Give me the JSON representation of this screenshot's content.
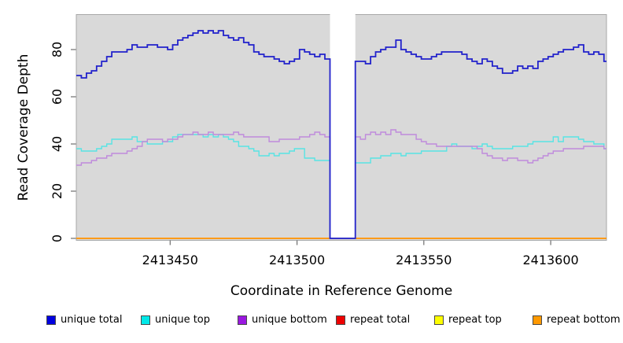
{
  "figure": {
    "background": "#ffffff"
  },
  "axes": {
    "x_title": "Coordinate in Reference Genome",
    "y_title": "Read Coverage Depth"
  },
  "chart_data": {
    "type": "line",
    "subtype": "step",
    "title": "",
    "xlabel": "Coordinate in Reference Genome",
    "ylabel": "Read Coverage Depth",
    "xlim": [
      2413413,
      2413622
    ],
    "ylim": [
      0,
      95
    ],
    "x_ticks": [
      2413450,
      2413500,
      2413550,
      2413600
    ],
    "y_ticks": [
      0,
      20,
      40,
      60,
      80
    ],
    "grid": false,
    "plot_background": "#d9d9d9",
    "plot_border_color": "#a8a8a8",
    "tick_color": "#6e6e6e",
    "gap_region": {
      "x_start": 2413513,
      "x_end": 2413523,
      "fill": "#ffffff",
      "note": "white band where all series drop to 0"
    },
    "x_start": 2413413,
    "x_step": 2,
    "point_count": 105,
    "series": [
      {
        "name": "repeat total",
        "color": "#e01010",
        "stroke_width": 1.5,
        "constant_value": 0
      },
      {
        "name": "repeat top",
        "color": "#f5f500",
        "stroke_width": 1.5,
        "constant_value": 0
      },
      {
        "name": "repeat bottom",
        "color": "#ff9b19",
        "stroke_width": 2,
        "constant_value": 0
      },
      {
        "name": "unique top",
        "color": "#58e4e4",
        "stroke_width": 1.4,
        "values": [
          38,
          37,
          37,
          37,
          38,
          39,
          40,
          42,
          42,
          42,
          42,
          43,
          41,
          41,
          40,
          40,
          40,
          41,
          41,
          43,
          44,
          44,
          44,
          44,
          44,
          43,
          44,
          43,
          44,
          43,
          42,
          41,
          39,
          39,
          38,
          37,
          35,
          35,
          36,
          35,
          36,
          36,
          37,
          38,
          38,
          34,
          34,
          33,
          33,
          33,
          0,
          0,
          0,
          0,
          0,
          32,
          32,
          32,
          34,
          34,
          35,
          35,
          36,
          36,
          35,
          36,
          36,
          36,
          37,
          37,
          37,
          37,
          37,
          39,
          40,
          39,
          39,
          39,
          38,
          39,
          40,
          39,
          38,
          38,
          38,
          38,
          39,
          39,
          39,
          40,
          41,
          41,
          41,
          41,
          43,
          41,
          43,
          43,
          43,
          42,
          41,
          41,
          40,
          40,
          38
        ]
      },
      {
        "name": "unique bottom",
        "color": "#bf8bdc",
        "stroke_width": 1.4,
        "values": [
          31,
          32,
          32,
          33,
          34,
          34,
          35,
          36,
          36,
          36,
          37,
          38,
          39,
          41,
          42,
          42,
          42,
          41,
          42,
          42,
          43,
          44,
          44,
          45,
          44,
          44,
          45,
          44,
          44,
          44,
          44,
          45,
          44,
          43,
          43,
          43,
          43,
          43,
          41,
          41,
          42,
          42,
          42,
          42,
          43,
          43,
          44,
          45,
          44,
          43,
          0,
          0,
          0,
          0,
          0,
          43,
          42,
          44,
          45,
          44,
          45,
          44,
          46,
          45,
          44,
          44,
          44,
          42,
          41,
          40,
          40,
          39,
          39,
          39,
          39,
          39,
          39,
          39,
          39,
          38,
          36,
          35,
          34,
          34,
          33,
          34,
          34,
          33,
          33,
          32,
          33,
          34,
          35,
          36,
          37,
          37,
          38,
          38,
          38,
          38,
          39,
          39,
          39,
          39,
          38
        ]
      },
      {
        "name": "unique total",
        "color": "#2222cb",
        "stroke_width": 1.8,
        "values": [
          69,
          68,
          70,
          71,
          73,
          75,
          77,
          79,
          79,
          79,
          80,
          82,
          81,
          81,
          82,
          82,
          81,
          81,
          80,
          82,
          84,
          85,
          86,
          87,
          88,
          87,
          88,
          87,
          88,
          86,
          85,
          84,
          85,
          83,
          82,
          79,
          78,
          77,
          77,
          76,
          75,
          74,
          75,
          76,
          80,
          79,
          78,
          77,
          78,
          76,
          0,
          0,
          0,
          0,
          0,
          75,
          75,
          74,
          77,
          79,
          80,
          81,
          81,
          84,
          80,
          79,
          78,
          77,
          76,
          76,
          77,
          78,
          79,
          79,
          79,
          79,
          78,
          76,
          75,
          74,
          76,
          75,
          73,
          72,
          70,
          70,
          71,
          73,
          72,
          73,
          72,
          75,
          76,
          77,
          78,
          79,
          80,
          80,
          81,
          82,
          79,
          78,
          79,
          78,
          75
        ]
      }
    ],
    "legend_position": "bottom",
    "legend": [
      {
        "label": "unique total",
        "color": "#0000e0"
      },
      {
        "label": "unique top",
        "color": "#00e8e8"
      },
      {
        "label": "unique bottom",
        "color": "#9a18e0"
      },
      {
        "label": "repeat total",
        "color": "#ee0000"
      },
      {
        "label": "repeat top",
        "color": "#fdfd00"
      },
      {
        "label": "repeat bottom",
        "color": "#ff9900"
      }
    ],
    "legend_x_positions": [
      59,
      179,
      302,
      427,
      552,
      677
    ],
    "legend_y": 400
  }
}
